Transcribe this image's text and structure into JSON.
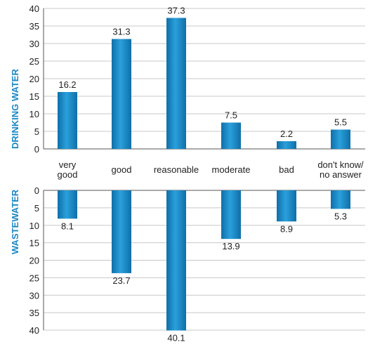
{
  "chart_data": [
    {
      "type": "bar",
      "ylabel": "DRINKING WATER",
      "categories": [
        "very good",
        "good",
        "reasonable",
        "moderate",
        "bad",
        "don't know/ no answer"
      ],
      "category_lines": [
        [
          "very",
          "good"
        ],
        [
          "good"
        ],
        [
          "reasonable"
        ],
        [
          "moderate"
        ],
        [
          "bad"
        ],
        [
          "don't know/",
          "no answer"
        ]
      ],
      "values": [
        16.2,
        31.3,
        37.3,
        7.5,
        2.2,
        5.5
      ],
      "value_labels": [
        "16.2",
        "31.3",
        "37.3",
        "7.5",
        "2.2",
        "5.5"
      ],
      "ylim": [
        0,
        40
      ],
      "yticks": [
        "0",
        "5",
        "10",
        "15",
        "20",
        "25",
        "30",
        "35",
        "40"
      ],
      "grid": true,
      "color": "#1a88c5"
    },
    {
      "type": "bar",
      "ylabel": "WASTEWATER",
      "categories": [
        "very good",
        "good",
        "reasonable",
        "moderate",
        "bad",
        "don't know/ no answer"
      ],
      "values": [
        8.1,
        23.7,
        40.1,
        13.9,
        8.9,
        5.3
      ],
      "value_labels": [
        "8.1",
        "23.7",
        "40.1",
        "13.9",
        "8.9",
        "5.3"
      ],
      "ylim": [
        0,
        40
      ],
      "inverted": true,
      "yticks": [
        "0",
        "5",
        "10",
        "15",
        "20",
        "25",
        "30",
        "35",
        "40"
      ],
      "grid": true,
      "color": "#1a88c5"
    }
  ]
}
